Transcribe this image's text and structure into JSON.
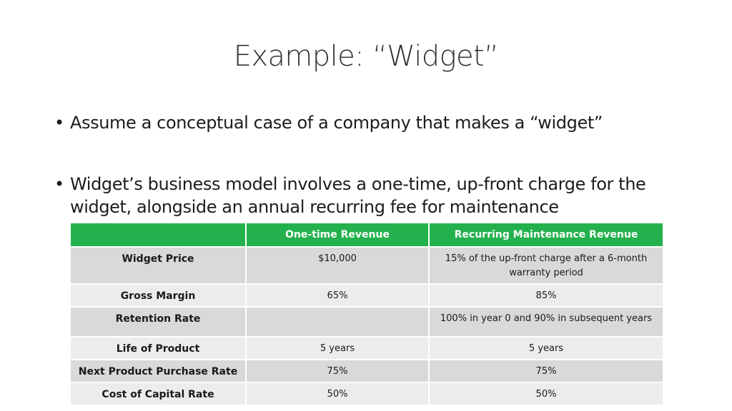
{
  "slide": {
    "title": "Example: “Widget”",
    "bullets": [
      "Assume a conceptual case of a company that makes a “widget”",
      "Widget’s business model involves a one-time, up-front charge for the widget, alongside an annual recurring fee for maintenance"
    ]
  },
  "table": {
    "headers": [
      "",
      "One-time Revenue",
      "Recurring Maintenance Revenue"
    ],
    "rows": [
      {
        "label": "Widget Price",
        "one_time": "$10,000",
        "recurring": "15% of the up-front charge after a 6-month warranty period"
      },
      {
        "label": "Gross Margin",
        "one_time": "65%",
        "recurring": "85%"
      },
      {
        "label": "Retention Rate",
        "one_time": "",
        "recurring": "100% in year 0 and 90% in subsequent years"
      },
      {
        "label": "Life of Product",
        "one_time": "5 years",
        "recurring": "5 years"
      },
      {
        "label": "Next Product Purchase Rate",
        "one_time": "75%",
        "recurring": "75%"
      },
      {
        "label": "Cost of Capital Rate",
        "one_time": "50%",
        "recurring": "50%"
      }
    ]
  },
  "colors": {
    "header_green": "#23b14d",
    "row_dark": "#d9d9d9",
    "row_light": "#ececec"
  }
}
